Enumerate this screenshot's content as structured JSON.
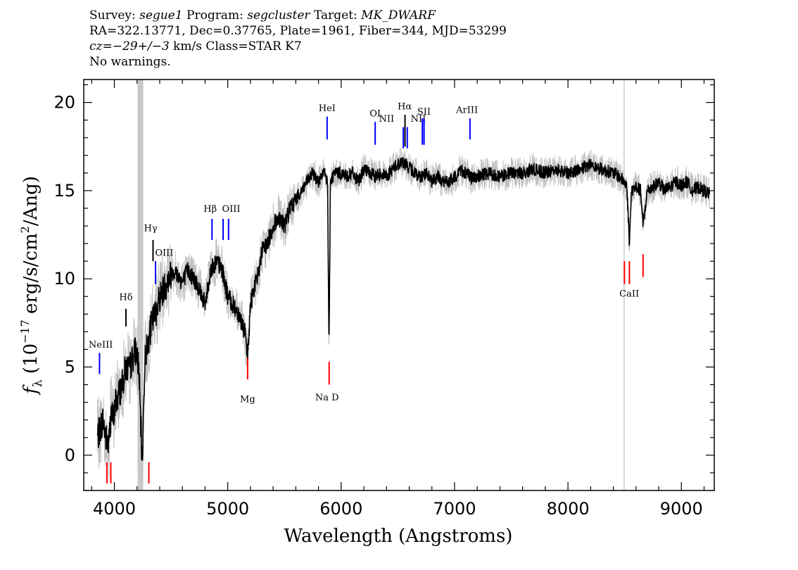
{
  "header": {
    "survey_label": "Survey:",
    "survey": "segue1",
    "program_label": "Program:",
    "program": "segcluster",
    "target_label": "Target:",
    "target": "MK_DWARF",
    "line2": "RA=322.13771, Dec=0.37765, Plate=1961, Fiber=344, MJD=53299",
    "cz_label": "cz=",
    "cz_value": "−29+/−3",
    "cz_rest": " km/s Class=STAR K7",
    "line4": "No warnings."
  },
  "chart_data": {
    "type": "line",
    "xlabel": "Wavelength (Angstroms)",
    "ylabel_prefix": "f",
    "ylabel_sub": "λ",
    "ylabel_units_a": " (10",
    "ylabel_exp1": "−17",
    "ylabel_units_b": " erg/s/cm",
    "ylabel_exp2": "2",
    "ylabel_units_c": "/Ang)",
    "xlim": [
      3730,
      9290
    ],
    "ylim": [
      -2,
      21.3
    ],
    "xticks": [
      4000,
      5000,
      6000,
      7000,
      8000,
      9000
    ],
    "yticks": [
      0,
      5,
      10,
      15,
      20
    ],
    "masked_band": {
      "x": [
        4205,
        4255
      ],
      "color": "#c8c8c8"
    },
    "masked_line_x": 8495,
    "spectrum": {
      "color": "#000000",
      "error_color": "#c0c0c0",
      "x": [
        3850,
        3875,
        3900,
        3925,
        3950,
        3970,
        3990,
        4010,
        4040,
        4070,
        4100,
        4130,
        4160,
        4190,
        4215,
        4245,
        4270,
        4300,
        4330,
        4360,
        4400,
        4440,
        4480,
        4520,
        4560,
        4600,
        4650,
        4700,
        4750,
        4800,
        4850,
        4900,
        4950,
        5000,
        5050,
        5100,
        5150,
        5175,
        5200,
        5230,
        5260,
        5300,
        5350,
        5400,
        5450,
        5500,
        5550,
        5600,
        5650,
        5700,
        5750,
        5800,
        5850,
        5880,
        5893,
        5905,
        5940,
        6000,
        6050,
        6100,
        6150,
        6200,
        6250,
        6300,
        6350,
        6400,
        6450,
        6500,
        6550,
        6600,
        6650,
        6700,
        6750,
        6800,
        6850,
        6900,
        6950,
        7000,
        7050,
        7100,
        7150,
        7200,
        7300,
        7400,
        7500,
        7600,
        7700,
        7800,
        7900,
        8000,
        8100,
        8200,
        8300,
        8400,
        8450,
        8498,
        8520,
        8542,
        8560,
        8600,
        8640,
        8662,
        8700,
        8750,
        8800,
        8850,
        8900,
        8950,
        9000,
        9050,
        9100,
        9150,
        9200,
        9250
      ],
      "y": [
        1.0,
        1.5,
        2.0,
        1.0,
        0.5,
        2.5,
        2.0,
        3.0,
        3.5,
        4.0,
        5.0,
        4.8,
        5.5,
        6.0,
        5.0,
        -0.5,
        5.5,
        6.5,
        7.5,
        8.0,
        9.0,
        9.5,
        10.0,
        10.5,
        10.2,
        9.8,
        10.5,
        10.0,
        9.5,
        8.5,
        10.5,
        11.0,
        10.5,
        9.0,
        8.5,
        8.0,
        7.0,
        5.5,
        8.5,
        9.5,
        10.0,
        11.5,
        12.0,
        13.0,
        13.5,
        13.0,
        14.0,
        14.5,
        15.0,
        15.5,
        16.0,
        15.5,
        16.0,
        15.5,
        6.0,
        15.5,
        16.0,
        16.0,
        15.8,
        16.0,
        15.5,
        16.2,
        16.0,
        15.8,
        16.0,
        15.8,
        16.2,
        16.5,
        16.6,
        16.3,
        16.0,
        15.8,
        16.0,
        15.5,
        15.8,
        15.5,
        15.5,
        15.7,
        16.2,
        16.0,
        15.7,
        15.8,
        16.0,
        15.8,
        16.0,
        16.0,
        16.2,
        16.0,
        16.2,
        16.0,
        16.2,
        16.5,
        16.2,
        16.0,
        15.8,
        15.5,
        15.2,
        12.0,
        15.0,
        15.2,
        15.0,
        13.0,
        15.0,
        15.2,
        15.5,
        15.0,
        15.2,
        15.5,
        15.3,
        15.5,
        15.0,
        15.2,
        15.0,
        14.8
      ]
    },
    "emission_lines": [
      {
        "name": "NeIII",
        "x": 3869,
        "color": "#0000ff",
        "y0": 4.6,
        "y1": 5.8,
        "lx": 3880,
        "ly": 6.1
      },
      {
        "name": "Hδ",
        "x": 4102,
        "color": "#000000",
        "y0": 7.3,
        "y1": 8.3,
        "lx": 4102,
        "ly": 8.8
      },
      {
        "name": "Hγ",
        "x": 4341,
        "color": "#000000",
        "y0": 11.0,
        "y1": 12.2,
        "lx": 4320,
        "ly": 12.7
      },
      {
        "name": "OIII",
        "x": 4363,
        "color": "#0000ff",
        "y0": 9.7,
        "y1": 11.0,
        "lx": 4440,
        "ly": 11.3
      },
      {
        "name": "Hβ",
        "x": 4861,
        "color": "#0000ff",
        "y0": 12.2,
        "y1": 13.4,
        "lx": 4845,
        "ly": 13.8
      },
      {
        "name": "OIII",
        "x": 4959,
        "color": "#0000ff",
        "y0": 12.2,
        "y1": 13.4,
        "lx": 5030,
        "ly": 13.8
      },
      {
        "name": "OIII",
        "x": 5007,
        "color": "#0000ff",
        "y0": 12.2,
        "y1": 13.4,
        "lx": null,
        "ly": null
      },
      {
        "name": "HeI",
        "x": 5876,
        "color": "#0000ff",
        "y0": 17.9,
        "y1": 19.2,
        "lx": 5876,
        "ly": 19.5
      },
      {
        "name": "OI",
        "x": 6300,
        "color": "#0000ff",
        "y0": 17.6,
        "y1": 18.9,
        "lx": 6300,
        "ly": 19.2
      },
      {
        "name": "NII",
        "x": 6548,
        "color": "#0000ff",
        "y0": 17.4,
        "y1": 18.6,
        "lx": 6400,
        "ly": 18.9
      },
      {
        "name": "Hα",
        "x": 6563,
        "color": "#000000",
        "y0": 17.5,
        "y1": 19.3,
        "lx": 6560,
        "ly": 19.6
      },
      {
        "name": "NII",
        "x": 6583,
        "color": "#0000ff",
        "y0": 17.4,
        "y1": 18.6,
        "lx": 6680,
        "ly": 18.9
      },
      {
        "name": "SII",
        "x": 6716,
        "color": "#0000ff",
        "y0": 17.6,
        "y1": 19.1,
        "lx": 6730,
        "ly": 19.3
      },
      {
        "name": "SII",
        "x": 6731,
        "color": "#0000ff",
        "y0": 17.6,
        "y1": 19.1,
        "lx": null,
        "ly": null
      },
      {
        "name": "ArIII",
        "x": 7136,
        "color": "#0000ff",
        "y0": 17.9,
        "y1": 19.1,
        "lx": 7110,
        "ly": 19.4
      }
    ],
    "absorption_lines": [
      {
        "name": "",
        "x": 3934,
        "color": "#ff0000",
        "y0": -1.6,
        "y1": -0.4,
        "lx": null,
        "ly": null
      },
      {
        "name": "",
        "x": 3969,
        "color": "#ff0000",
        "y0": -1.6,
        "y1": -0.4,
        "lx": null,
        "ly": null
      },
      {
        "name": "",
        "x": 4304,
        "color": "#ff0000",
        "y0": -1.6,
        "y1": -0.4,
        "lx": null,
        "ly": null
      },
      {
        "name": "Mg",
        "x": 5175,
        "color": "#ff0000",
        "y0": 4.3,
        "y1": 5.5,
        "lx": 5175,
        "ly": 3.0
      },
      {
        "name": "Na D",
        "x": 5894,
        "color": "#ff0000",
        "y0": 4.0,
        "y1": 5.3,
        "lx": 5875,
        "ly": 3.1
      },
      {
        "name": "CaII",
        "x": 8498,
        "color": "#ff0000",
        "y0": 9.7,
        "y1": 11.0,
        "lx": 8540,
        "ly": 9.0
      },
      {
        "name": "",
        "x": 8542,
        "color": "#ff0000",
        "y0": 9.7,
        "y1": 11.0,
        "lx": null,
        "ly": null
      },
      {
        "name": "",
        "x": 8662,
        "color": "#ff0000",
        "y0": 10.1,
        "y1": 11.4,
        "lx": null,
        "ly": null
      }
    ]
  }
}
